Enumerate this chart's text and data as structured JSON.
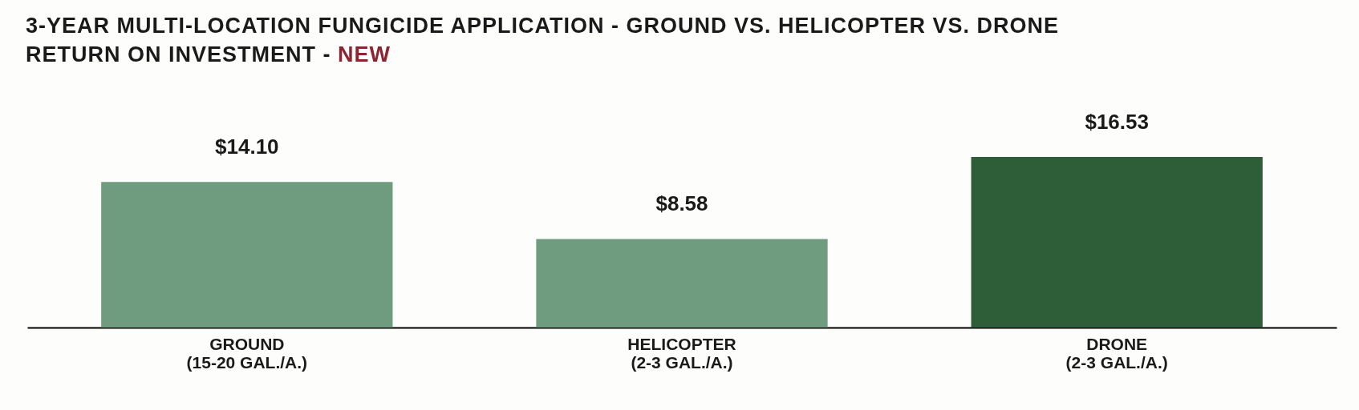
{
  "chart_data": {
    "type": "bar",
    "title": "3-YEAR MULTI-LOCATION FUNGICIDE APPLICATION - GROUND VS. HELICOPTER VS. DRONE",
    "subtitle": "RETURN ON INVESTMENT - NEW",
    "categories": [
      "GROUND\n(15-20 GAL./A.)",
      "HELICOPTER\n(2-3 GAL./A.)",
      "DRONE\n(2-3 GAL./A.)"
    ],
    "values": [
      14.1,
      8.58,
      16.53
    ],
    "colors": [
      "#6f9c7f",
      "#6f9c7f",
      "#2d5e38"
    ],
    "value_labels": [
      "$14.10",
      "$8.58",
      "$16.53"
    ]
  }
}
